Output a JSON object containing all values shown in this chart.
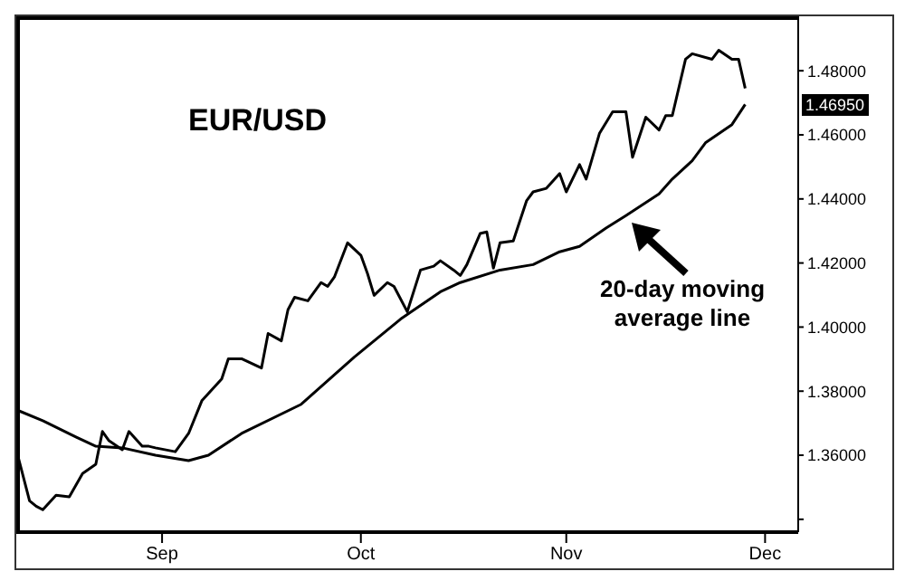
{
  "chart_data": {
    "type": "line",
    "title": "EUR/USD",
    "marker": "none",
    "line_style": "solid",
    "xlim": [
      "--08-10",
      "--12-06"
    ],
    "xticks": [
      {
        "value": "--09-01",
        "label": "Sep"
      },
      {
        "value": "--10-01",
        "label": "Oct"
      },
      {
        "value": "--11-01",
        "label": "Nov"
      },
      {
        "value": "--12-01",
        "label": "Dec"
      }
    ],
    "ylim": [
      1.336,
      1.497
    ],
    "yticks": [
      {
        "value": 1.34,
        "label": null
      },
      {
        "value": 1.36,
        "label": "1.36000"
      },
      {
        "value": 1.38,
        "label": "1.38000"
      },
      {
        "value": 1.4,
        "label": "1.40000"
      },
      {
        "value": 1.42,
        "label": "1.42000"
      },
      {
        "value": 1.44,
        "label": "1.44000"
      },
      {
        "value": 1.46,
        "label": "1.46000"
      },
      {
        "value": 1.48,
        "label": "1.48000"
      }
    ],
    "series": [
      {
        "color": "#000000",
        "x": [
          "--08-10",
          "--08-12",
          "--08-13",
          "--08-14",
          "--08-16",
          "--08-18",
          "--08-20",
          "--08-22",
          "--08-23",
          "--08-24",
          "--08-26",
          "--08-27",
          "--08-29",
          "--08-30",
          "--08-31",
          "--09-03",
          "--09-05",
          "--09-07",
          "--09-10",
          "--09-11",
          "--09-13",
          "--09-16",
          "--09-17",
          "--09-19",
          "--09-20",
          "--09-21",
          "--09-23",
          "--09-25",
          "--09-26",
          "--09-27",
          "--09-29",
          "--10-01",
          "--10-02",
          "--10-03",
          "--10-05",
          "--10-06",
          "--10-08",
          "--10-10",
          "--10-12",
          "--10-13",
          "--10-15",
          "--10-16",
          "--10-17",
          "--10-19",
          "--10-20",
          "--10-21",
          "--10-22",
          "--10-24",
          "--10-26",
          "--10-27",
          "--10-29",
          "--10-31",
          "--11-01",
          "--11-03",
          "--11-04",
          "--11-06",
          "--11-08",
          "--11-10",
          "--11-11",
          "--11-13",
          "--11-15",
          "--11-16",
          "--11-17",
          "--11-19",
          "--11-20",
          "--11-23",
          "--11-24",
          "--11-26",
          "--11-27",
          "--11-28"
        ],
        "values": [
          1.3617,
          1.3458,
          1.3441,
          1.343,
          1.3475,
          1.347,
          1.3543,
          1.3572,
          1.3674,
          1.3645,
          1.3617,
          1.3674,
          1.3628,
          1.3628,
          1.3623,
          1.3611,
          1.3668,
          1.377,
          1.3838,
          1.3901,
          1.3901,
          1.3872,
          1.398,
          1.3957,
          1.4054,
          1.4093,
          1.4082,
          1.4139,
          1.4127,
          1.4156,
          1.4263,
          1.4224,
          1.4167,
          1.4099,
          1.4139,
          1.4127,
          1.4048,
          1.4178,
          1.419,
          1.4207,
          1.4178,
          1.4161,
          1.4195,
          1.4292,
          1.4297,
          1.4184,
          1.4263,
          1.4269,
          1.4394,
          1.4422,
          1.4433,
          1.4479,
          1.4422,
          1.4507,
          1.4462,
          1.4604,
          1.4672,
          1.4672,
          1.453,
          1.4655,
          1.4615,
          1.466,
          1.466,
          1.4836,
          1.4853,
          1.4836,
          1.4864,
          1.4836,
          1.4836,
          1.4745
        ]
      },
      {
        "color": "#000000",
        "x": [
          "--08-10",
          "--08-14",
          "--08-19",
          "--08-22",
          "--08-26",
          "--08-31",
          "--09-05",
          "--09-08",
          "--09-13",
          "--09-22",
          "--09-30",
          "--10-07",
          "--10-13",
          "--10-16",
          "--10-22",
          "--10-27",
          "--10-31",
          "--11-03",
          "--11-07",
          "--11-10",
          "--11-15",
          "--11-17",
          "--11-20",
          "--11-22",
          "--11-26",
          "--11-28"
        ],
        "values": [
          1.3742,
          1.3708,
          1.3657,
          1.3628,
          1.3623,
          1.36,
          1.3583,
          1.36,
          1.3668,
          1.3759,
          1.3906,
          1.4025,
          1.411,
          1.4139,
          1.4178,
          1.4195,
          1.4235,
          1.4252,
          1.4309,
          1.4348,
          1.4416,
          1.4462,
          1.4519,
          1.4575,
          1.4632,
          1.4695
        ]
      }
    ],
    "annotations": [
      "20-day moving average line",
      "1.46950"
    ]
  }
}
